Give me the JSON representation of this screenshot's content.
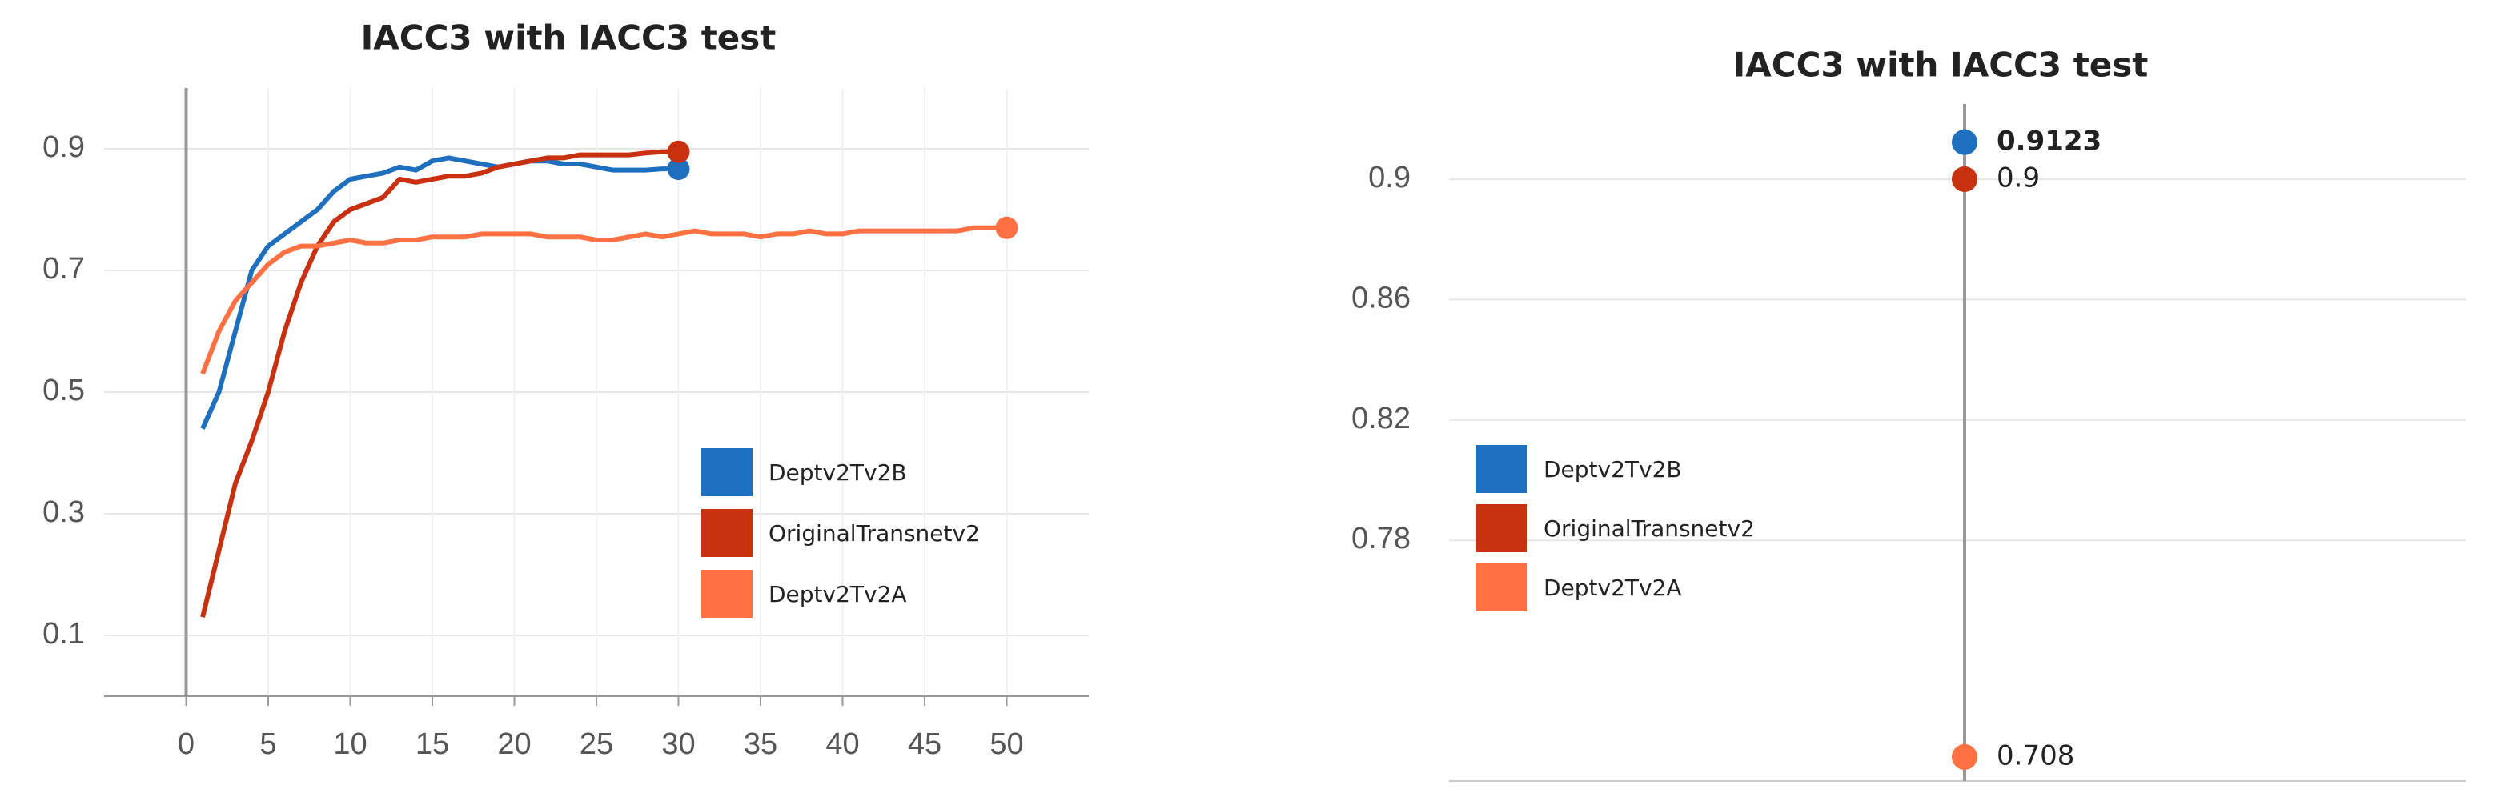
{
  "chart_data": [
    {
      "type": "line",
      "title": "IACC3 with IACC3 test",
      "x": [
        1,
        2,
        3,
        4,
        5,
        6,
        7,
        8,
        9,
        10,
        11,
        12,
        13,
        14,
        15,
        16,
        17,
        18,
        19,
        20,
        21,
        22,
        23,
        24,
        25,
        26,
        27,
        28,
        29,
        30,
        31,
        32,
        33,
        34,
        35,
        36,
        37,
        38,
        39,
        40,
        41,
        42,
        43,
        44,
        45,
        46,
        47,
        48,
        49,
        50
      ],
      "series": [
        {
          "name": "Deptv2Tv2B",
          "color": "#1f6fbf",
          "values": [
            0.44,
            0.5,
            0.6,
            0.7,
            0.74,
            0.76,
            0.78,
            0.8,
            0.83,
            0.85,
            0.855,
            0.86,
            0.87,
            0.865,
            0.88,
            0.885,
            0.88,
            0.875,
            0.87,
            0.875,
            0.88,
            0.88,
            0.875,
            0.875,
            0.87,
            0.865,
            0.865,
            0.865,
            0.867,
            0.867,
            null,
            null,
            null,
            null,
            null,
            null,
            null,
            null,
            null,
            null,
            null,
            null,
            null,
            null,
            null,
            null,
            null,
            null,
            null,
            null
          ]
        },
        {
          "name": "OriginalTransnetv2",
          "color": "#c9300f",
          "values": [
            0.13,
            0.24,
            0.35,
            0.42,
            0.5,
            0.6,
            0.68,
            0.74,
            0.78,
            0.8,
            0.81,
            0.82,
            0.85,
            0.845,
            0.85,
            0.855,
            0.855,
            0.86,
            0.87,
            0.875,
            0.88,
            0.885,
            0.885,
            0.89,
            0.89,
            0.89,
            0.89,
            0.893,
            0.895,
            0.895,
            null,
            null,
            null,
            null,
            null,
            null,
            null,
            null,
            null,
            null,
            null,
            null,
            null,
            null,
            null,
            null,
            null,
            null,
            null,
            null
          ]
        },
        {
          "name": "Deptv2Tv2A",
          "color": "#ff7043",
          "values": [
            0.53,
            0.6,
            0.65,
            0.68,
            0.71,
            0.73,
            0.74,
            0.74,
            0.745,
            0.75,
            0.745,
            0.745,
            0.75,
            0.75,
            0.755,
            0.755,
            0.755,
            0.76,
            0.76,
            0.76,
            0.76,
            0.755,
            0.755,
            0.755,
            0.75,
            0.75,
            0.755,
            0.76,
            0.755,
            0.76,
            0.765,
            0.76,
            0.76,
            0.76,
            0.755,
            0.76,
            0.76,
            0.765,
            0.76,
            0.76,
            0.765,
            0.765,
            0.765,
            0.765,
            0.765,
            0.765,
            0.765,
            0.77,
            0.77,
            0.77
          ]
        }
      ],
      "xlim": [
        -5,
        55
      ],
      "xticks": [
        0,
        5,
        10,
        15,
        20,
        25,
        30,
        35,
        40,
        45,
        50
      ],
      "ylim": [
        0,
        1
      ],
      "yticks": [
        0.1,
        0.3,
        0.5,
        0.7,
        0.9
      ],
      "grid": true
    },
    {
      "type": "dot",
      "title": "IACC3 with IACC3 test",
      "series": [
        {
          "name": "Deptv2Tv2B",
          "color": "#1f6fbf",
          "values": [
            0.9123
          ]
        },
        {
          "name": "OriginalTransnetv2",
          "color": "#c9300f",
          "values": [
            0.9
          ]
        },
        {
          "name": "Deptv2Tv2A",
          "color": "#ff7043",
          "values": [
            0.708
          ]
        }
      ],
      "ylim": [
        0.7,
        0.925
      ],
      "yticks": [
        0.78,
        0.82,
        0.86,
        0.9
      ],
      "grid": true
    }
  ]
}
